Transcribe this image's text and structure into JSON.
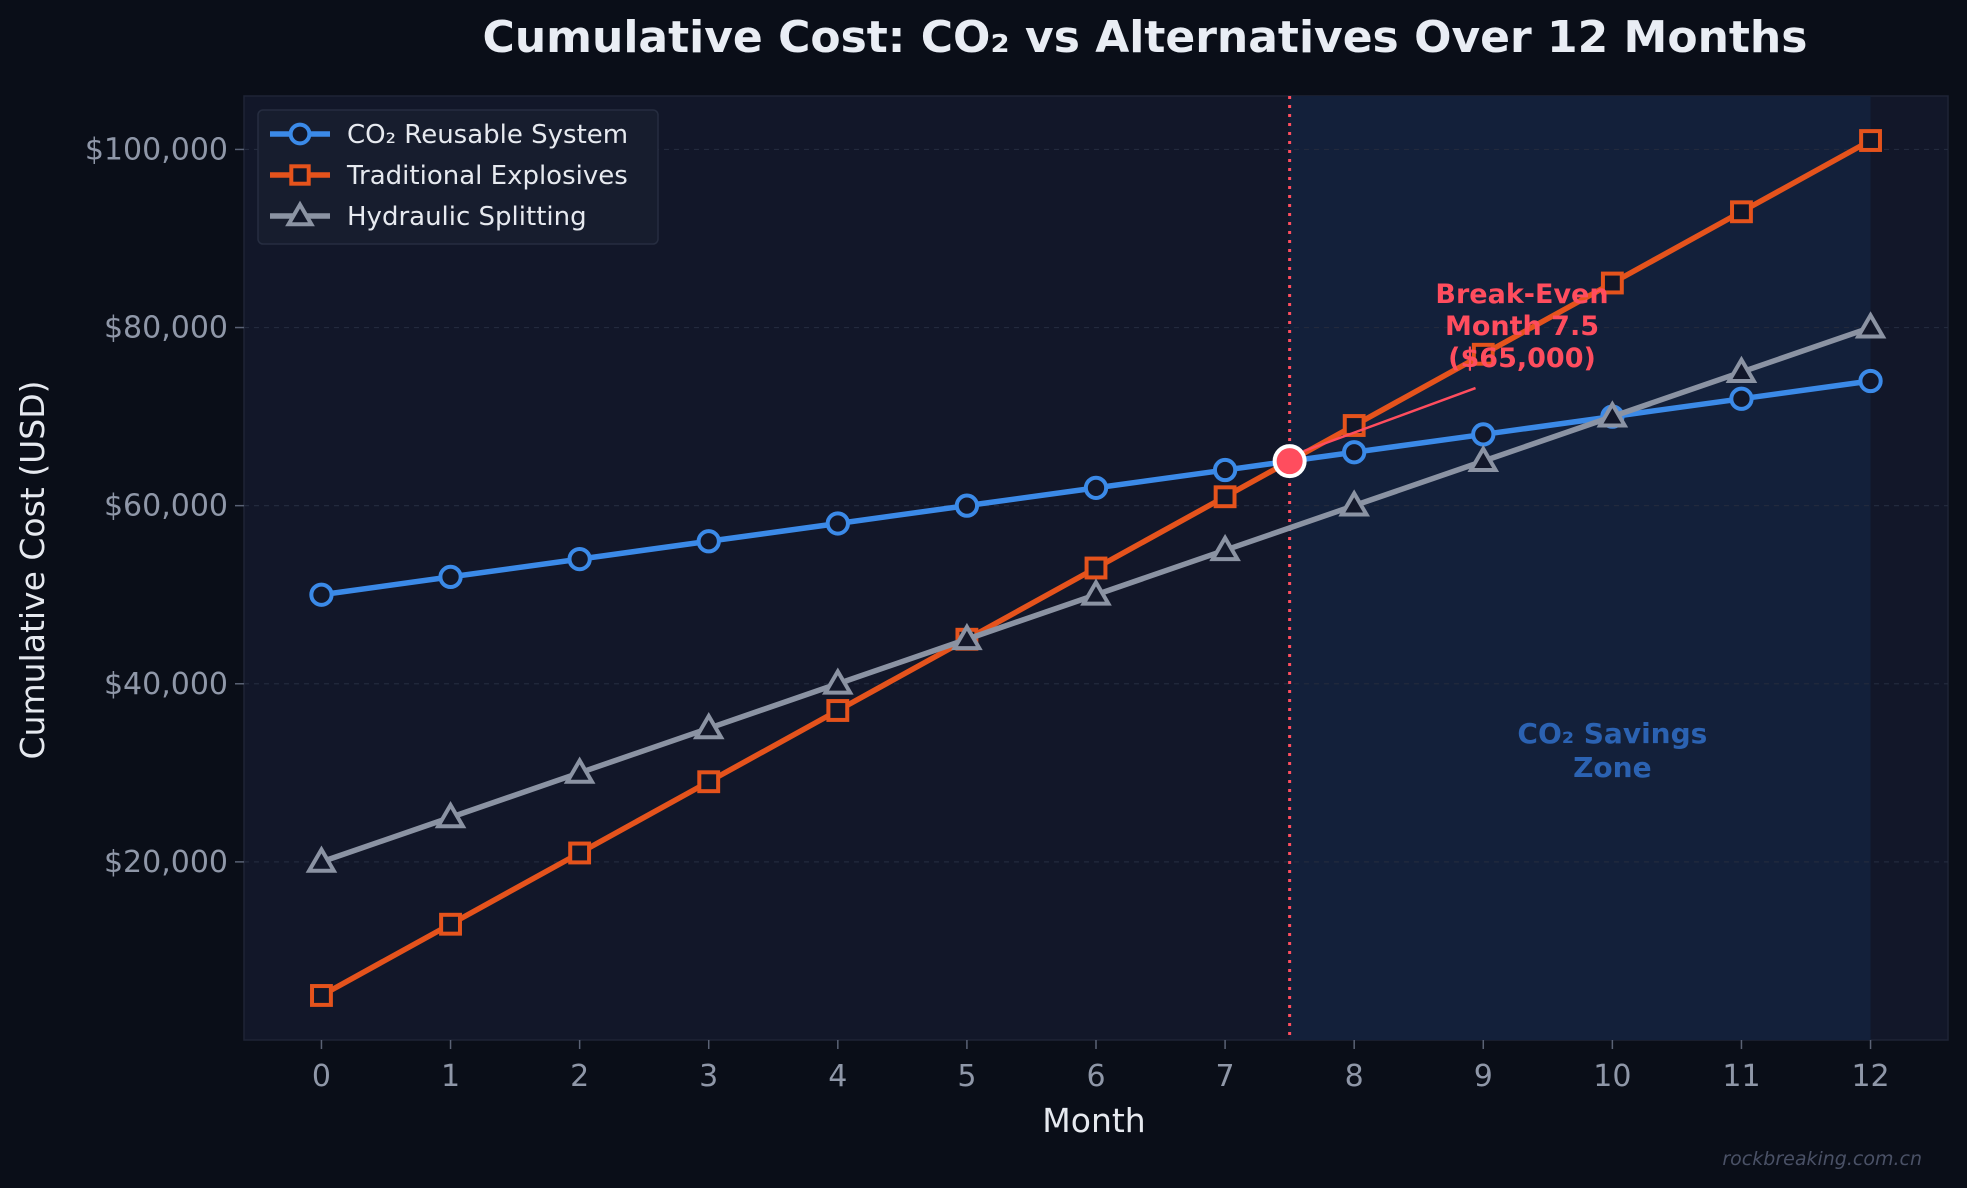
{
  "chart_data": {
    "type": "line",
    "title": "Cumulative Cost: CO₂ vs Alternatives Over 12 Months",
    "xlabel": "Month",
    "ylabel": "Cumulative Cost (USD)",
    "x": [
      0,
      1,
      2,
      3,
      4,
      5,
      6,
      7,
      8,
      9,
      10,
      11,
      12
    ],
    "xlim": [
      -0.6,
      12.6
    ],
    "ylim": [
      0,
      106000
    ],
    "x_ticks": [
      "0",
      "1",
      "2",
      "3",
      "4",
      "5",
      "6",
      "7",
      "8",
      "9",
      "10",
      "11",
      "12"
    ],
    "y_ticks": [
      {
        "value": 20000,
        "label": "$20,000"
      },
      {
        "value": 40000,
        "label": "$40,000"
      },
      {
        "value": 60000,
        "label": "$60,000"
      },
      {
        "value": 80000,
        "label": "$80,000"
      },
      {
        "value": 100000,
        "label": "$100,000"
      }
    ],
    "grid": true,
    "legend": "top-left",
    "series": [
      {
        "name": "CO₂ Reusable System",
        "color": "#3b8ae8",
        "marker": "circle",
        "values": [
          50000,
          52000,
          54000,
          56000,
          58000,
          60000,
          62000,
          64000,
          66000,
          68000,
          70000,
          72000,
          74000
        ]
      },
      {
        "name": "Traditional Explosives",
        "color": "#e5531c",
        "marker": "square",
        "values": [
          5000,
          13000,
          21000,
          29000,
          37000,
          45000,
          53000,
          61000,
          69000,
          77000,
          85000,
          93000,
          101000
        ]
      },
      {
        "name": "Hydraulic Splitting",
        "color": "#8b93a3",
        "marker": "triangle",
        "values": [
          20000,
          25000,
          30000,
          35000,
          40000,
          45000,
          50000,
          55000,
          60000,
          65000,
          70000,
          75000,
          80000
        ]
      }
    ],
    "break_even": {
      "x": 7.5,
      "y": 65000,
      "color": "#ff4d5e",
      "label_lines": [
        "Break-Even",
        "Month 7.5",
        "($65,000)"
      ],
      "label_x": 9.3,
      "label_y": 79500
    },
    "savings_zone": {
      "x_start": 7.5,
      "x_end": 12,
      "label_lines": [
        "CO₂ Savings",
        "Zone"
      ],
      "label_x": 10,
      "label_y": 32000
    },
    "watermark": "rockbreaking.com.cn"
  }
}
